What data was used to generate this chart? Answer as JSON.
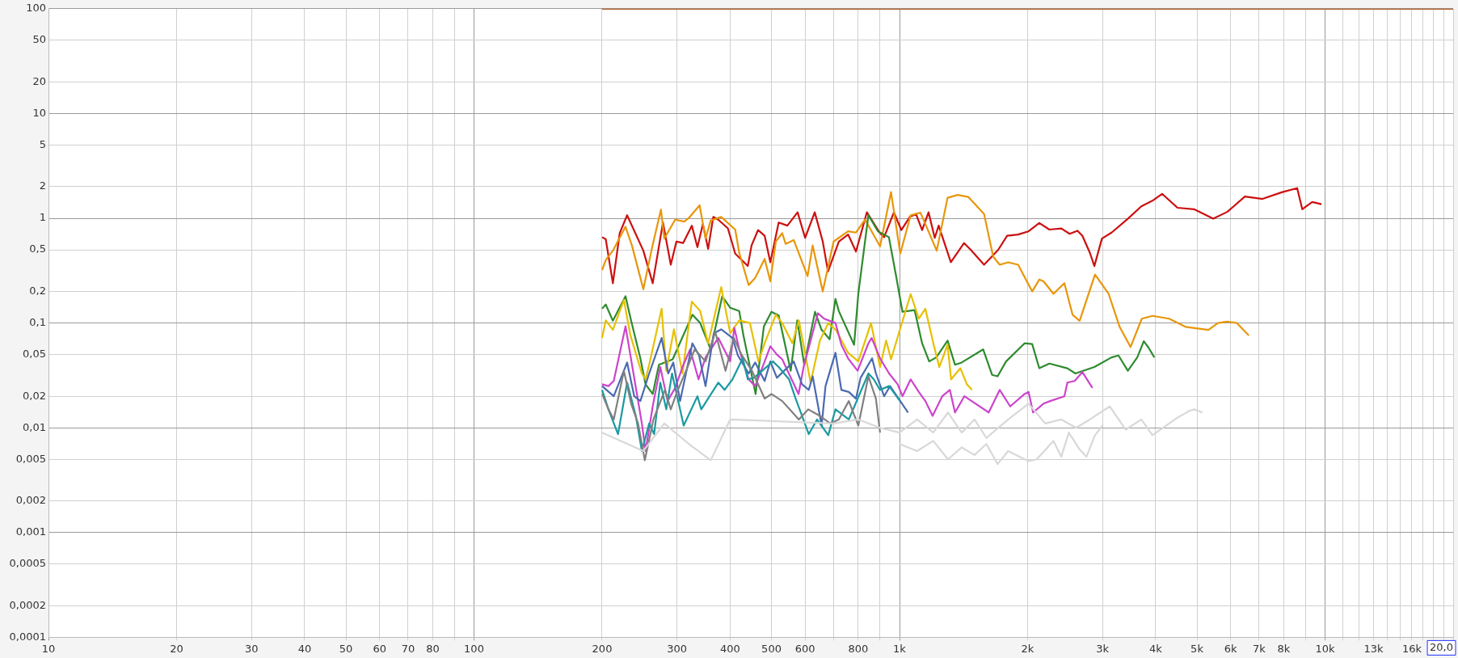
{
  "chart_data": {
    "type": "line",
    "log": "xy",
    "grid": true,
    "legend": false,
    "marker": "none",
    "line_style": "solid",
    "xlim": [
      10,
      20000
    ],
    "ylim": [
      0.0001,
      100
    ],
    "xticks": [
      10,
      20,
      30,
      40,
      50,
      60,
      70,
      80,
      {
        "value": 90,
        "label": null
      },
      100,
      200,
      300,
      400,
      500,
      600,
      {
        "value": 700,
        "label": null
      },
      800,
      {
        "value": 900,
        "label": null
      },
      {
        "value": 1000,
        "label": "1k"
      },
      {
        "value": 2000,
        "label": "2k"
      },
      {
        "value": 3000,
        "label": "3k"
      },
      {
        "value": 4000,
        "label": "4k"
      },
      {
        "value": 5000,
        "label": "5k"
      },
      {
        "value": 6000,
        "label": "6k"
      },
      {
        "value": 7000,
        "label": "7k"
      },
      {
        "value": 8000,
        "label": "8k"
      },
      {
        "value": 9000,
        "label": null
      },
      {
        "value": 10000,
        "label": "10k"
      },
      {
        "value": 11000,
        "label": null
      },
      {
        "value": 12000,
        "label": null
      },
      {
        "value": 13000,
        "label": "13k"
      },
      {
        "value": 14000,
        "label": null
      },
      {
        "value": 15000,
        "label": null
      },
      {
        "value": 16000,
        "label": "16k"
      },
      {
        "value": 17000,
        "label": null
      },
      {
        "value": 18000,
        "label": null
      },
      {
        "value": 19000,
        "label": null
      },
      {
        "value": 20000,
        "label": null
      }
    ],
    "annotations": [
      "20,0"
    ],
    "yticks": [
      100,
      50,
      20,
      10,
      5,
      2,
      1,
      {
        "value": 0.5,
        "label": "0,5"
      },
      {
        "value": 0.2,
        "label": "0,2"
      },
      {
        "value": 0.1,
        "label": "0,1"
      },
      {
        "value": 0.05,
        "label": "0,05"
      },
      {
        "value": 0.02,
        "label": "0,02"
      },
      {
        "value": 0.01,
        "label": "0,01"
      },
      {
        "value": 0.005,
        "label": "0,005"
      },
      {
        "value": 0.002,
        "label": "0,002"
      },
      {
        "value": 0.001,
        "label": "0,001"
      },
      {
        "value": 0.0005,
        "label": "0,0005"
      },
      {
        "value": 0.0002,
        "label": "0,0002"
      },
      {
        "value": 0.0001,
        "label": "0,0001"
      }
    ],
    "series": [
      {
        "color": "#b8612a",
        "x": [
          200,
          20000
        ],
        "values": [
          100,
          100
        ]
      },
      {
        "color": "#d8d8d8",
        "x": [
          200,
          250,
          280,
          320,
          360,
          400,
          700,
          800,
          900,
          1000,
          1100,
          1200,
          1300,
          1400,
          1500,
          1600,
          1800,
          2010,
          2200,
          2400,
          2600,
          2800,
          3120,
          3400,
          3700,
          3930,
          4500,
          4800,
          4930,
          5150
        ],
        "values": [
          0.009,
          0.006,
          0.011,
          0.007,
          0.0049,
          0.012,
          0.011,
          0.012,
          0.01,
          0.009,
          0.012,
          0.009,
          0.014,
          0.009,
          0.012,
          0.008,
          0.012,
          0.017,
          0.011,
          0.012,
          0.01,
          0.012,
          0.016,
          0.0096,
          0.012,
          0.0085,
          0.0125,
          0.0145,
          0.015,
          0.014
        ]
      },
      {
        "color": "#d8d8d8",
        "x": [
          1000,
          1100,
          1200,
          1300,
          1400,
          1500,
          1600,
          1700,
          1800,
          2010,
          2100,
          2300,
          2400,
          2500,
          2650,
          2750,
          2880,
          3010
        ],
        "values": [
          0.007,
          0.006,
          0.0075,
          0.005,
          0.0065,
          0.0055,
          0.007,
          0.0045,
          0.006,
          0.0048,
          0.005,
          0.0075,
          0.0053,
          0.009,
          0.0062,
          0.0053,
          0.0085,
          0.0107
        ]
      },
      {
        "color": "#808080",
        "x": [
          200,
          207,
          213,
          225,
          234,
          243,
          252,
          264,
          281,
          290,
          300,
          315,
          330,
          350,
          369,
          390,
          408,
          425,
          450,
          482,
          500,
          530,
          580,
          610,
          650,
          687,
          720,
          760,
          800,
          845,
          880,
          900
        ],
        "values": [
          0.021,
          0.015,
          0.012,
          0.035,
          0.017,
          0.011,
          0.0049,
          0.012,
          0.023,
          0.015,
          0.022,
          0.035,
          0.056,
          0.043,
          0.082,
          0.035,
          0.072,
          0.05,
          0.035,
          0.019,
          0.021,
          0.018,
          0.012,
          0.015,
          0.013,
          0.011,
          0.012,
          0.018,
          0.0105,
          0.031,
          0.019,
          0.009
        ]
      },
      {
        "color": "#1a9aa0",
        "x": [
          200,
          207,
          218,
          229,
          240,
          248,
          258,
          265,
          274,
          283,
          292,
          311,
          335,
          342,
          375,
          388,
          405,
          428,
          440,
          455,
          504,
          520,
          550,
          570,
          612,
          640,
          680,
          707,
          760,
          845,
          870,
          900,
          945,
          1003
        ],
        "values": [
          0.023,
          0.015,
          0.0087,
          0.027,
          0.013,
          0.006,
          0.011,
          0.0087,
          0.027,
          0.015,
          0.033,
          0.0105,
          0.02,
          0.015,
          0.027,
          0.023,
          0.029,
          0.046,
          0.029,
          0.03,
          0.043,
          0.038,
          0.029,
          0.019,
          0.0087,
          0.012,
          0.0085,
          0.015,
          0.012,
          0.033,
          0.029,
          0.023,
          0.025,
          0.018
        ]
      },
      {
        "color": "#4a6ab0",
        "x": [
          200,
          213,
          229,
          238,
          246,
          258,
          276,
          286,
          294,
          305,
          326,
          338,
          350,
          366,
          381,
          405,
          417,
          442,
          458,
          482,
          497,
          515,
          564,
          590,
          612,
          625,
          656,
          670,
          707,
          730,
          760,
          790,
          810,
          862,
          880,
          920,
          950,
          1047
        ],
        "values": [
          0.025,
          0.02,
          0.042,
          0.02,
          0.018,
          0.033,
          0.072,
          0.033,
          0.042,
          0.018,
          0.064,
          0.049,
          0.025,
          0.08,
          0.087,
          0.072,
          0.049,
          0.033,
          0.042,
          0.028,
          0.043,
          0.03,
          0.043,
          0.026,
          0.023,
          0.031,
          0.0105,
          0.025,
          0.052,
          0.023,
          0.022,
          0.019,
          0.03,
          0.046,
          0.033,
          0.02,
          0.025,
          0.014
        ]
      },
      {
        "color": "#cc44cc",
        "x": [
          200,
          207,
          213,
          227,
          237,
          248,
          253,
          263,
          274,
          285,
          297,
          309,
          322,
          337,
          350,
          375,
          400,
          409,
          420,
          442,
          458,
          482,
          497,
          515,
          530,
          579,
          595,
          643,
          665,
          707,
          730,
          757,
          797,
          845,
          860,
          900,
          945,
          990,
          1016,
          1062,
          1110,
          1150,
          1196,
          1260,
          1313,
          1350,
          1420,
          1620,
          1720,
          1820,
          1967,
          2010,
          2060,
          2180,
          2260,
          2440,
          2480,
          2580,
          2690,
          2840
        ],
        "values": [
          0.026,
          0.025,
          0.028,
          0.093,
          0.033,
          0.011,
          0.006,
          0.016,
          0.038,
          0.018,
          0.024,
          0.038,
          0.056,
          0.029,
          0.047,
          0.072,
          0.043,
          0.09,
          0.056,
          0.029,
          0.025,
          0.043,
          0.06,
          0.05,
          0.045,
          0.021,
          0.038,
          0.124,
          0.11,
          0.1,
          0.062,
          0.046,
          0.035,
          0.064,
          0.072,
          0.046,
          0.033,
          0.026,
          0.02,
          0.029,
          0.022,
          0.018,
          0.013,
          0.02,
          0.023,
          0.014,
          0.02,
          0.014,
          0.023,
          0.016,
          0.021,
          0.022,
          0.014,
          0.017,
          0.018,
          0.02,
          0.027,
          0.028,
          0.034,
          0.024
        ]
      },
      {
        "color": "#e6c000",
        "x": [
          200,
          204,
          212,
          225,
          233,
          248,
          253,
          258,
          276,
          283,
          295,
          309,
          325,
          340,
          355,
          381,
          400,
          420,
          445,
          466,
          482,
          512,
          530,
          560,
          580,
          618,
          650,
          680,
          710,
          757,
          800,
          857,
          900,
          930,
          955,
          1062,
          1110,
          1150,
          1203,
          1240,
          1297,
          1322,
          1390,
          1440,
          1480
        ],
        "values": [
          0.072,
          0.106,
          0.086,
          0.166,
          0.077,
          0.033,
          0.029,
          0.04,
          0.137,
          0.035,
          0.087,
          0.033,
          0.16,
          0.13,
          0.064,
          0.22,
          0.08,
          0.106,
          0.1,
          0.043,
          0.064,
          0.12,
          0.1,
          0.064,
          0.106,
          0.027,
          0.068,
          0.1,
          0.085,
          0.052,
          0.043,
          0.1,
          0.038,
          0.068,
          0.045,
          0.189,
          0.11,
          0.137,
          0.062,
          0.038,
          0.062,
          0.029,
          0.037,
          0.026,
          0.023
        ]
      },
      {
        "color": "#2e8b2e",
        "x": [
          200,
          204,
          212,
          227,
          234,
          246,
          253,
          263,
          272,
          293,
          326,
          340,
          360,
          383,
          400,
          420,
          430,
          459,
          480,
          500,
          520,
          555,
          575,
          597,
          633,
          655,
          685,
          707,
          720,
          782,
          800,
          845,
          890,
          944,
          985,
          1016,
          1085,
          1130,
          1174,
          1220,
          1297,
          1350,
          1400,
          1572,
          1650,
          1700,
          1780,
          1967,
          2050,
          2130,
          2250,
          2480,
          2590,
          2870,
          3150,
          3270,
          3440,
          3620,
          3750,
          3850,
          3970
        ],
        "values": [
          0.137,
          0.15,
          0.105,
          0.18,
          0.105,
          0.046,
          0.026,
          0.021,
          0.04,
          0.045,
          0.12,
          0.1,
          0.056,
          0.18,
          0.14,
          0.13,
          0.075,
          0.021,
          0.093,
          0.128,
          0.118,
          0.035,
          0.106,
          0.04,
          0.128,
          0.087,
          0.07,
          0.17,
          0.13,
          0.062,
          0.19,
          1.07,
          0.75,
          0.66,
          0.26,
          0.128,
          0.133,
          0.064,
          0.043,
          0.047,
          0.068,
          0.04,
          0.042,
          0.056,
          0.032,
          0.031,
          0.043,
          0.064,
          0.063,
          0.037,
          0.041,
          0.037,
          0.033,
          0.038,
          0.047,
          0.049,
          0.035,
          0.047,
          0.067,
          0.058,
          0.047
        ]
      },
      {
        "color": "#e8960a",
        "x": [
          200,
          204,
          212,
          227,
          235,
          250,
          263,
          275,
          280,
          297,
          312,
          320,
          339,
          350,
          360,
          381,
          411,
          420,
          442,
          458,
          482,
          497,
          512,
          530,
          540,
          564,
          608,
          625,
          660,
          700,
          757,
          790,
          830,
          900,
          955,
          1004,
          1062,
          1120,
          1223,
          1297,
          1370,
          1450,
          1580,
          1660,
          1720,
          1800,
          1900,
          2050,
          2130,
          2180,
          2300,
          2440,
          2550,
          2650,
          2880,
          3100,
          3290,
          3490,
          3710,
          3930,
          4300,
          4700,
          5320,
          5600,
          5890,
          6200,
          6620
        ],
        "values": [
          0.32,
          0.4,
          0.49,
          0.83,
          0.55,
          0.21,
          0.56,
          1.21,
          0.64,
          0.97,
          0.93,
          1.01,
          1.33,
          0.64,
          0.95,
          1.03,
          0.78,
          0.47,
          0.23,
          0.27,
          0.41,
          0.25,
          0.6,
          0.72,
          0.57,
          0.62,
          0.28,
          0.55,
          0.2,
          0.6,
          0.75,
          0.73,
          0.97,
          0.54,
          1.78,
          0.46,
          1.07,
          1.13,
          0.49,
          1.57,
          1.67,
          1.6,
          1.1,
          0.43,
          0.36,
          0.38,
          0.36,
          0.2,
          0.26,
          0.25,
          0.19,
          0.24,
          0.12,
          0.105,
          0.29,
          0.19,
          0.092,
          0.059,
          0.11,
          0.117,
          0.11,
          0.092,
          0.086,
          0.1,
          0.103,
          0.1,
          0.076
        ]
      },
      {
        "color": "#cc1010",
        "x": [
          200,
          204,
          212,
          220,
          229,
          250,
          263,
          278,
          290,
          299,
          310,
          325,
          335,
          345,
          355,
          365,
          375,
          395,
          411,
          440,
          449,
          465,
          482,
          497,
          520,
          545,
          576,
          600,
          632,
          660,
          679,
          720,
          757,
          790,
          838,
          900,
          920,
          970,
          1010,
          1057,
          1093,
          1130,
          1170,
          1210,
          1236,
          1320,
          1418,
          1470,
          1580,
          1706,
          1790,
          1900,
          2010,
          2130,
          2250,
          2400,
          2510,
          2620,
          2690,
          2800,
          2870,
          2990,
          3150,
          3440,
          3700,
          3930,
          4140,
          4500,
          4920,
          5460,
          5890,
          6480,
          7130,
          7910,
          8600,
          8840,
          9330,
          9810
        ],
        "values": [
          0.66,
          0.63,
          0.24,
          0.72,
          1.07,
          0.49,
          0.24,
          0.91,
          0.36,
          0.6,
          0.58,
          0.85,
          0.53,
          0.88,
          0.51,
          1.03,
          0.97,
          0.8,
          0.46,
          0.35,
          0.55,
          0.77,
          0.68,
          0.38,
          0.91,
          0.85,
          1.14,
          0.65,
          1.14,
          0.6,
          0.31,
          0.6,
          0.7,
          0.48,
          1.14,
          0.72,
          0.66,
          1.14,
          0.77,
          1.03,
          1.1,
          0.77,
          1.14,
          0.65,
          0.85,
          0.38,
          0.58,
          0.5,
          0.36,
          0.5,
          0.68,
          0.7,
          0.75,
          0.9,
          0.78,
          0.8,
          0.71,
          0.76,
          0.68,
          0.47,
          0.35,
          0.64,
          0.73,
          0.99,
          1.3,
          1.47,
          1.71,
          1.26,
          1.22,
          0.99,
          1.15,
          1.61,
          1.53,
          1.77,
          1.94,
          1.22,
          1.43,
          1.36
        ]
      }
    ]
  }
}
